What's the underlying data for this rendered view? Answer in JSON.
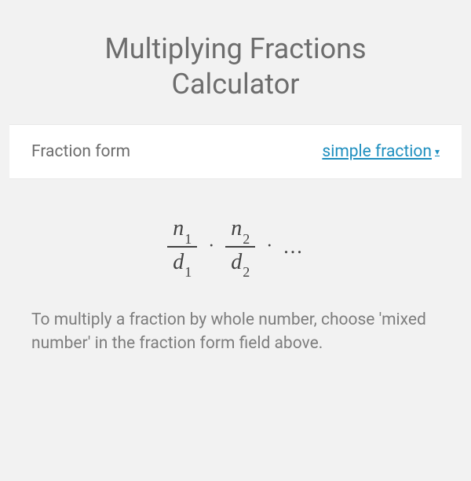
{
  "title": "Multiplying Fractions Calculator",
  "form": {
    "label": "Fraction form",
    "selected": "simple fraction",
    "dropdown_icon": "▾"
  },
  "formula": {
    "n": "n",
    "d": "d",
    "sub1": "1",
    "sub2": "2",
    "dot": "·",
    "ellipsis": "..."
  },
  "hint": "To multiply a fraction by whole number, choose 'mixed number' in the fraction form field above.",
  "colors": {
    "background": "#f2f2f2",
    "text_muted": "#6d6d6d",
    "text_body": "#7d7d7d",
    "link": "#1f8fbf",
    "formula": "#424242",
    "row_bg": "#ffffff"
  }
}
